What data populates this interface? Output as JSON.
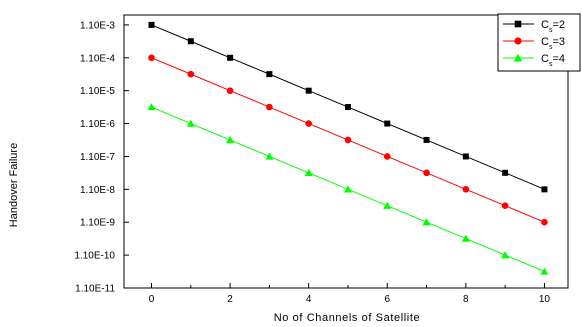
{
  "chart_data": {
    "type": "line",
    "title": "",
    "xlabel": "No of Channels of Satellite",
    "ylabel": "Handover Failure",
    "x": [
      0,
      1,
      2,
      3,
      4,
      5,
      6,
      7,
      8,
      9,
      10
    ],
    "x_ticks": [
      "0",
      "2",
      "4",
      "6",
      "8",
      "10"
    ],
    "xlim": [
      -0.7,
      10.6
    ],
    "y_scale": "log",
    "y_ticks": [
      "1.10E-3",
      "1.10E-4",
      "1.10E-5",
      "1.10E-6",
      "1.10E-7",
      "1.10E-8",
      "1.10E-9",
      "1.10E-10",
      "1.10E-11"
    ],
    "ylim": [
      1.1e-11,
      0.0022
    ],
    "grid": false,
    "legend_position": "top-right",
    "series": [
      {
        "name_main": "C",
        "name_sub": "s",
        "name_suffix": "=2",
        "color": "#000000",
        "marker": "square",
        "values": [
          0.0011,
          0.00035,
          0.00011,
          3.5e-05,
          1.1e-05,
          3.5e-06,
          1.1e-06,
          3.5e-07,
          1.1e-07,
          3.5e-08,
          1.1e-08
        ]
      },
      {
        "name_main": "C",
        "name_sub": "s",
        "name_suffix": "=3",
        "color": "#ff0000",
        "marker": "circle",
        "values": [
          0.00011,
          3.5e-05,
          1.1e-05,
          3.5e-06,
          1.1e-06,
          3.5e-07,
          1.1e-07,
          3.5e-08,
          1.1e-08,
          3.5e-09,
          1.1e-09
        ]
      },
      {
        "name_main": "C",
        "name_sub": "s",
        "name_suffix": "=4",
        "color": "#00ff00",
        "marker": "triangle",
        "values": [
          3.5e-06,
          1.1e-06,
          3.5e-07,
          1.1e-07,
          3.5e-08,
          1.1e-08,
          3.5e-09,
          1.1e-09,
          3.5e-10,
          1.1e-10,
          3.5e-11
        ]
      }
    ]
  }
}
